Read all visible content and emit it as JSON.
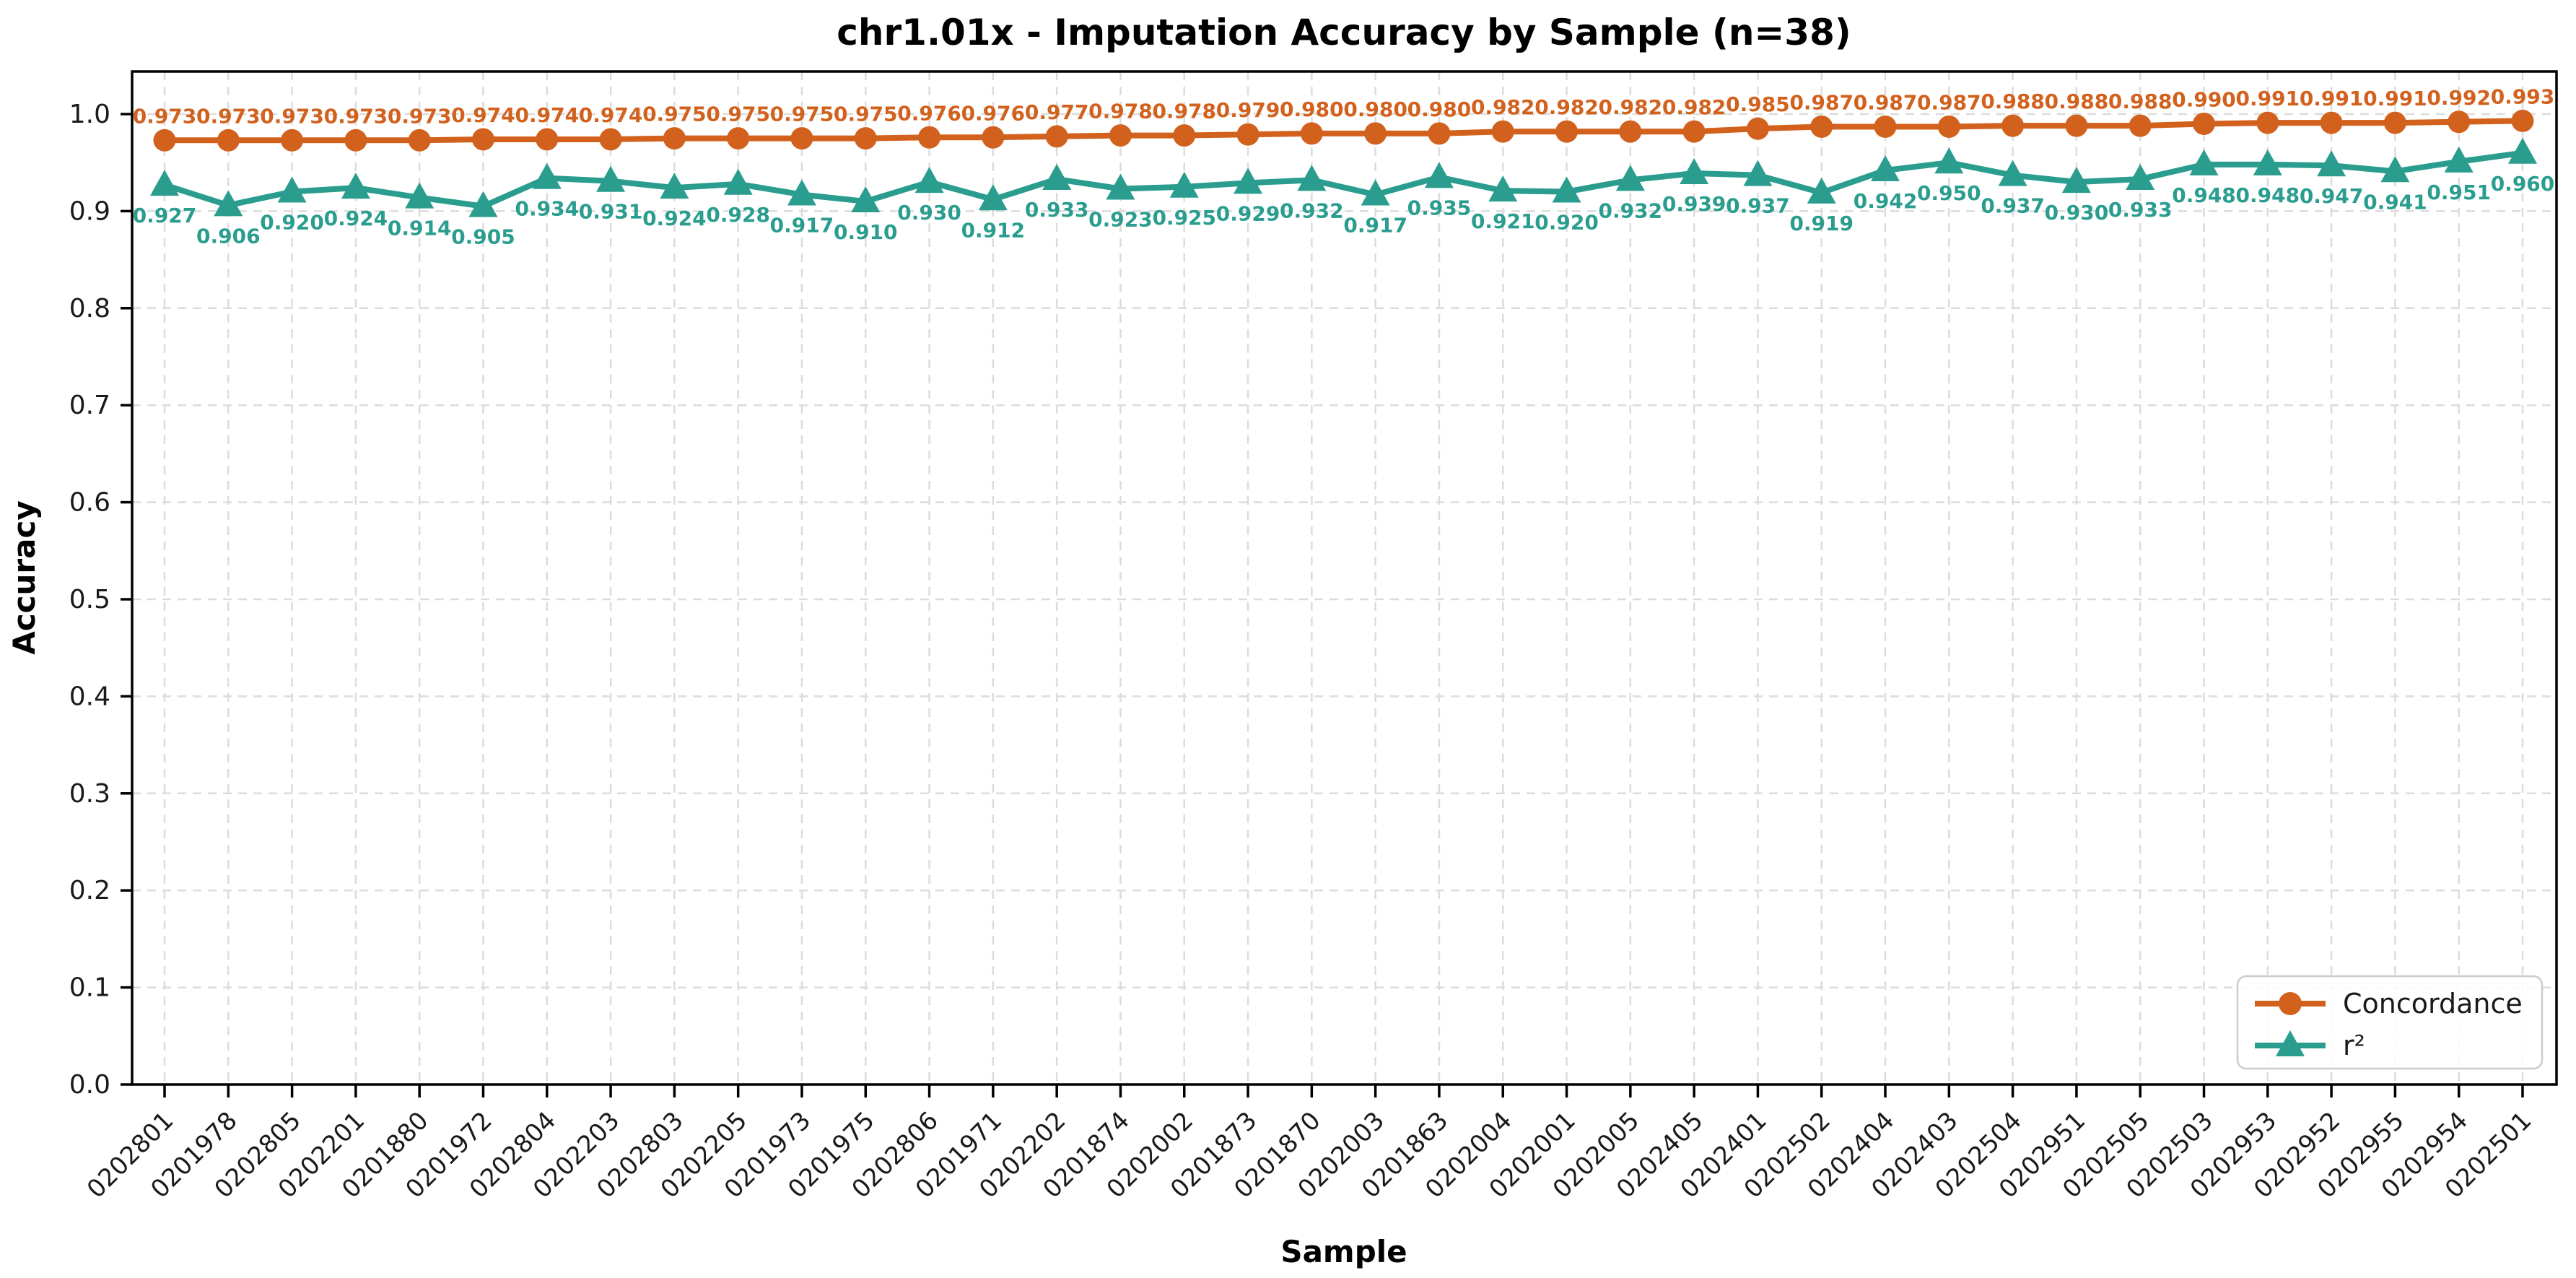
{
  "chart_data": {
    "type": "line",
    "title": "chr1.01x - Imputation Accuracy by Sample (n=38)",
    "xlabel": "Sample",
    "ylabel": "Accuracy",
    "ylim": [
      0.0,
      1.04
    ],
    "grid": true,
    "grid_style": "dashed",
    "legend_position": "lower right",
    "y_ticks": [
      0.0,
      0.1,
      0.2,
      0.3,
      0.4,
      0.5,
      0.6,
      0.7,
      0.8,
      0.9,
      1.0
    ],
    "categories": [
      "0202801",
      "0201978",
      "0202805",
      "0202201",
      "0201880",
      "0201972",
      "0202804",
      "0202203",
      "0202803",
      "0202205",
      "0201973",
      "0201975",
      "0202806",
      "0201971",
      "0202202",
      "0201874",
      "0202002",
      "0201873",
      "0201870",
      "0202003",
      "0201863",
      "0202004",
      "0202001",
      "0202005",
      "0202405",
      "0202401",
      "0202502",
      "0202404",
      "0202403",
      "0202504",
      "0202951",
      "0202505",
      "0202503",
      "0202953",
      "0202952",
      "0202955",
      "0202954",
      "0202501"
    ],
    "series": [
      {
        "name": "Concordance",
        "color": "#d2611d",
        "marker": "circle",
        "data_labels_shown": true,
        "values": [
          0.973,
          0.973,
          0.973,
          0.973,
          0.973,
          0.974,
          0.974,
          0.974,
          0.975,
          0.975,
          0.975,
          0.975,
          0.976,
          0.976,
          0.977,
          0.978,
          0.978,
          0.979,
          0.98,
          0.98,
          0.98,
          0.982,
          0.982,
          0.982,
          0.982,
          0.985,
          0.987,
          0.987,
          0.987,
          0.988,
          0.988,
          0.988,
          0.99,
          0.991,
          0.991,
          0.991,
          0.992,
          0.993
        ]
      },
      {
        "name": "r²",
        "color": "#2a9d8f",
        "marker": "triangle",
        "data_labels_shown": true,
        "values": [
          0.927,
          0.906,
          0.92,
          0.924,
          0.914,
          0.905,
          0.934,
          0.931,
          0.924,
          0.928,
          0.917,
          0.91,
          0.93,
          0.912,
          0.933,
          0.923,
          0.925,
          0.929,
          0.932,
          0.917,
          0.935,
          0.921,
          0.92,
          0.932,
          0.939,
          0.937,
          0.919,
          0.942,
          0.95,
          0.937,
          0.93,
          0.933,
          0.948,
          0.948,
          0.947,
          0.941,
          0.951,
          0.96
        ]
      }
    ],
    "colors": {
      "concordance": "#d2611d",
      "r2": "#2a9d8f",
      "grid": "#dcdcdc",
      "spine": "#000000",
      "legend_border": "#cccccc"
    }
  }
}
